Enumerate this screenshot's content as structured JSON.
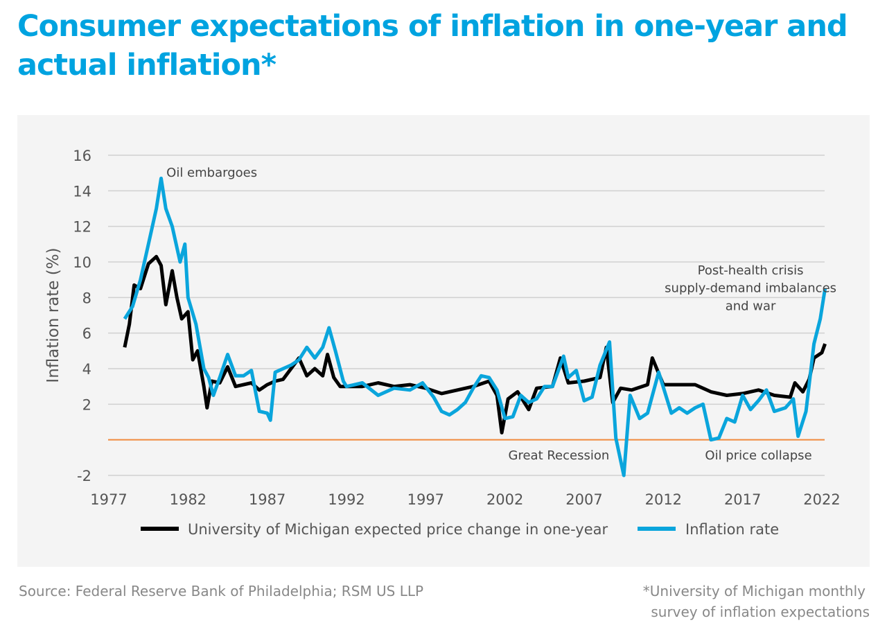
{
  "title": "Consumer expectations of inflation in one-year and actual inflation*",
  "source": "Source: Federal Reserve Bank of Philadelphia; RSM US LLP",
  "footnote_line1": "*University of Michigan monthly",
  "footnote_line2": "survey of inflation expectations",
  "colors": {
    "title": "#00a3e0",
    "michigan": "#000000",
    "inflation": "#0aa5dc",
    "zero_line": "#f08a3c",
    "grid": "#d0d0d0"
  },
  "chart_data": {
    "type": "line",
    "title": "Consumer expectations of inflation in one-year and actual inflation*",
    "xlabel": "",
    "ylabel": "Inflation rate (%)",
    "xlim": [
      1977,
      2022
    ],
    "ylim": [
      -2,
      16
    ],
    "x_ticks": [
      "1977",
      "1982",
      "1987",
      "1992",
      "1997",
      "2002",
      "2007",
      "2012",
      "2017",
      "2022"
    ],
    "y_ticks": [
      "-2",
      "",
      "2",
      "4",
      "6",
      "8",
      "10",
      "12",
      "14",
      "16"
    ],
    "y_tick_values": [
      -2,
      0,
      2,
      4,
      6,
      8,
      10,
      12,
      14,
      16
    ],
    "grid": true,
    "legend_position": "bottom",
    "annotations": [
      {
        "text": "Oil embargoes",
        "x": 1983.5,
        "y": 14.8
      },
      {
        "text": "Post-health crisis",
        "x": 2017.5,
        "y": 9.3
      },
      {
        "text": "supply-demand imbalances",
        "x": 2017.5,
        "y": 8.3
      },
      {
        "text": "and war",
        "x": 2017.5,
        "y": 7.3
      },
      {
        "text": "Great Recession",
        "x": 2005.4,
        "y": -1.1
      },
      {
        "text": "Oil price collapse",
        "x": 2018.0,
        "y": -1.1
      }
    ],
    "series": [
      {
        "name": "University of Michigan expected price change in one-year",
        "color": "#000000",
        "x": [
          1978,
          1978.3,
          1978.6,
          1979,
          1979.5,
          1980,
          1980.3,
          1980.6,
          1981,
          1981.3,
          1981.6,
          1982,
          1982.3,
          1982.6,
          1983,
          1983.2,
          1983.5,
          1984,
          1984.5,
          1985,
          1986,
          1986.5,
          1987,
          1987.5,
          1988,
          1988.5,
          1989,
          1989.5,
          1990,
          1990.5,
          1990.8,
          1991.2,
          1991.6,
          1992,
          1993,
          1994,
          1995,
          1996,
          1997,
          1998,
          1999,
          2000,
          2001,
          2001.5,
          2001.8,
          2002.2,
          2002.8,
          2003.5,
          2004,
          2005,
          2005.5,
          2006,
          2007,
          2008,
          2008.4,
          2008.8,
          2009.3,
          2010,
          2011,
          2011.3,
          2012,
          2013,
          2014,
          2015,
          2016,
          2017,
          2018,
          2019,
          2020,
          2020.3,
          2020.8,
          2021.2,
          2021.5,
          2022,
          2022.2
        ],
        "values": [
          5.2,
          6.5,
          8.7,
          8.5,
          9.9,
          10.3,
          9.8,
          7.6,
          9.5,
          8.0,
          6.8,
          7.2,
          4.5,
          5.0,
          3.0,
          1.8,
          3.3,
          3.2,
          4.1,
          3.0,
          3.2,
          2.8,
          3.1,
          3.3,
          3.4,
          4.0,
          4.6,
          3.6,
          4.0,
          3.6,
          4.8,
          3.5,
          3.0,
          3.0,
          3.0,
          3.2,
          3.0,
          3.1,
          2.9,
          2.6,
          2.8,
          3.0,
          3.3,
          2.5,
          0.4,
          2.3,
          2.7,
          1.7,
          2.9,
          3.0,
          4.6,
          3.2,
          3.3,
          3.5,
          5.2,
          2.1,
          2.9,
          2.8,
          3.1,
          4.6,
          3.1,
          3.1,
          3.1,
          2.7,
          2.5,
          2.6,
          2.8,
          2.5,
          2.4,
          3.2,
          2.7,
          3.4,
          4.6,
          4.9,
          5.4
        ]
      },
      {
        "name": "Inflation rate",
        "color": "#0aa5dc",
        "x": [
          1978,
          1978.5,
          1979,
          1979.5,
          1980,
          1980.3,
          1980.6,
          1981,
          1981.5,
          1981.8,
          1982,
          1982.5,
          1983,
          1983.3,
          1983.6,
          1984,
          1984.5,
          1985,
          1985.5,
          1986,
          1986.5,
          1987,
          1987.2,
          1987.5,
          1988,
          1988.5,
          1989,
          1989.5,
          1990,
          1990.5,
          1990.9,
          1991.3,
          1991.8,
          1992,
          1993,
          1994,
          1995,
          1996,
          1996.8,
          1997.5,
          1998,
          1998.5,
          1999,
          1999.5,
          2000,
          2000.5,
          2001,
          2001.5,
          2002,
          2002.5,
          2003,
          2003.5,
          2004,
          2004.5,
          2005,
          2005.7,
          2006,
          2006.5,
          2007,
          2007.5,
          2008,
          2008.6,
          2009,
          2009.5,
          2009.9,
          2010.5,
          2011,
          2011.7,
          2012.5,
          2013,
          2013.5,
          2014,
          2014.5,
          2015,
          2015.5,
          2016,
          2016.5,
          2017,
          2017.5,
          2018,
          2018.5,
          2019,
          2019.7,
          2020.2,
          2020.5,
          2021,
          2021.5,
          2021.9,
          2022.2
        ],
        "values": [
          6.8,
          7.5,
          9.0,
          11.0,
          13.0,
          14.7,
          13.0,
          12.0,
          10.0,
          11.0,
          8.0,
          6.5,
          4.0,
          3.5,
          2.5,
          3.5,
          4.8,
          3.6,
          3.6,
          3.9,
          1.6,
          1.5,
          1.1,
          3.8,
          4.0,
          4.2,
          4.5,
          5.2,
          4.6,
          5.2,
          6.3,
          5.0,
          3.3,
          3.0,
          3.2,
          2.5,
          2.9,
          2.8,
          3.2,
          2.4,
          1.6,
          1.4,
          1.7,
          2.1,
          2.9,
          3.6,
          3.5,
          2.8,
          1.2,
          1.3,
          2.5,
          2.1,
          2.3,
          3.0,
          3.0,
          4.7,
          3.5,
          3.9,
          2.2,
          2.4,
          4.2,
          5.5,
          0.1,
          -2.0,
          2.5,
          1.2,
          1.5,
          3.8,
          1.5,
          1.8,
          1.5,
          1.8,
          2.0,
          0.0,
          0.1,
          1.2,
          1.0,
          2.5,
          1.7,
          2.2,
          2.8,
          1.6,
          1.8,
          2.3,
          0.2,
          1.6,
          5.4,
          6.8,
          8.5
        ]
      }
    ]
  }
}
